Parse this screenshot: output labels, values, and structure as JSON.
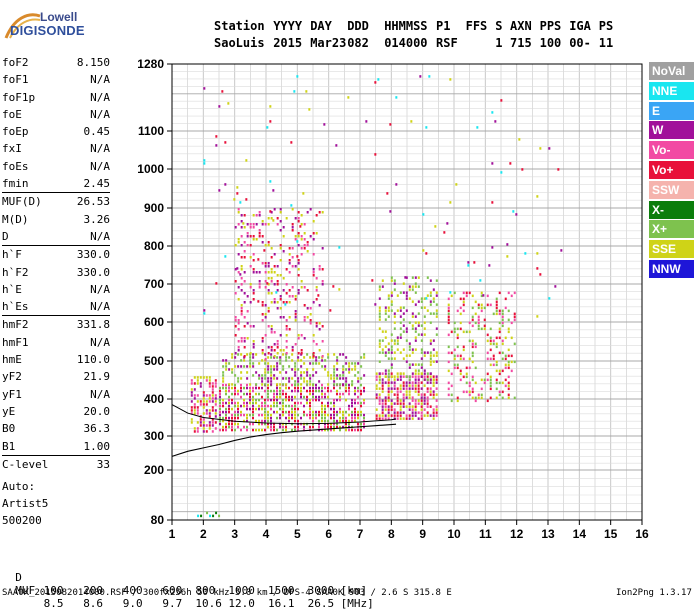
{
  "logo": {
    "line1": "Lowell",
    "line2": "DIGISONDE"
  },
  "header": {
    "labels": [
      "Station",
      "YYYY",
      "DAY",
      "DDD",
      "HHMMSS",
      "P1",
      "FFS",
      "S",
      "AXN",
      "PPS",
      "IGA",
      "PS"
    ],
    "values": [
      "SaoLuis",
      "2015",
      "Mar23",
      "082",
      "014000",
      "RSF",
      "1",
      "715",
      "100",
      "00-",
      "11"
    ]
  },
  "params": [
    {
      "k": "foF2",
      "v": "8.150"
    },
    {
      "k": "foF1",
      "v": "N/A"
    },
    {
      "k": "foF1p",
      "v": "N/A"
    },
    {
      "k": "foE",
      "v": "N/A"
    },
    {
      "k": "foEp",
      "v": "0.45"
    },
    {
      "k": "fxI",
      "v": "N/A"
    },
    {
      "k": "foEs",
      "v": "N/A"
    },
    {
      "k": "fmin",
      "v": "2.45"
    },
    {
      "k": "MUF(D)",
      "v": "26.53",
      "sep": true
    },
    {
      "k": "M(D)",
      "v": "3.26"
    },
    {
      "k": "D",
      "v": "N/A"
    },
    {
      "k": "h`F",
      "v": "330.0",
      "sep": true
    },
    {
      "k": "h`F2",
      "v": "330.0"
    },
    {
      "k": "h`E",
      "v": "N/A"
    },
    {
      "k": "h`Es",
      "v": "N/A"
    },
    {
      "k": "hmF2",
      "v": "331.8",
      "sep": true
    },
    {
      "k": "hmF1",
      "v": "N/A"
    },
    {
      "k": "hmE",
      "v": "110.0"
    },
    {
      "k": "yF2",
      "v": "21.9"
    },
    {
      "k": "yF1",
      "v": "N/A"
    },
    {
      "k": "yE",
      "v": "20.0"
    },
    {
      "k": "B0",
      "v": "36.3"
    },
    {
      "k": "B1",
      "v": "1.00"
    },
    {
      "k": "C-level",
      "v": "33",
      "sep": true
    }
  ],
  "autoscale": {
    "line1": "Auto:",
    "line2": "Artist5",
    "line3": "500200"
  },
  "legend": [
    {
      "label": "NoVal",
      "color": "#a0a0a0"
    },
    {
      "label": "NNE",
      "color": "#19e6f0"
    },
    {
      "label": "E",
      "color": "#3aa5f5"
    },
    {
      "label": "W",
      "color": "#a1109a"
    },
    {
      "label": "Vo-",
      "color": "#f24aa3"
    },
    {
      "label": "Vo+",
      "color": "#e8103a"
    },
    {
      "label": "SSW",
      "color": "#f5b3ad"
    },
    {
      "label": "X-",
      "color": "#0b7d0b"
    },
    {
      "label": "X+",
      "color": "#7ec24e"
    },
    {
      "label": "SSE",
      "color": "#cfd317"
    },
    {
      "label": "NNW",
      "color": "#1e16d8"
    }
  ],
  "footer": {
    "d_label": "D",
    "d_values": [
      "100",
      "200",
      "400",
      "600",
      "800",
      "1000",
      "1500",
      "3000",
      "[km]"
    ],
    "muf_label": "MUF",
    "muf_values": [
      "8.5",
      "8.6",
      "9.0",
      "9.7",
      "10.6",
      "12.0",
      "16.1",
      "26.5",
      "[MHz]"
    ],
    "caption": "SAA0K_2015082014000.RSF / 300fx256h 50 kHz 5.0 km / DPS-4 SAA0K 903 / 2.6 S 315.8 E",
    "version": "Ion2Png 1.3.17"
  },
  "chart_data": {
    "type": "scatter",
    "xlim": [
      1,
      16
    ],
    "ylim": [
      80,
      1280
    ],
    "grid": true,
    "x_ticks": [
      "1",
      "2",
      "3",
      "4",
      "5",
      "6",
      "7",
      "8",
      "9",
      "10",
      "11",
      "12",
      "13",
      "14",
      "15",
      "16"
    ],
    "y_ticks": [
      "80",
      "200",
      "300",
      "400",
      "500",
      "600",
      "700",
      "800",
      "900",
      "1000",
      "1100",
      "1280"
    ],
    "y_tick_values": [
      80,
      200,
      300,
      400,
      500,
      600,
      700,
      800,
      900,
      1000,
      1100,
      1280
    ],
    "profile_curve": {
      "name": "",
      "x": [
        1.0,
        1.5,
        2.0,
        2.5,
        3.0,
        3.5,
        4.0,
        4.5,
        5.0,
        5.5,
        6.0,
        6.5,
        7.0,
        7.5,
        8.0,
        8.15
      ],
      "y": [
        240,
        255,
        265,
        275,
        287,
        297,
        304,
        309,
        313,
        316,
        319,
        322,
        325,
        328,
        331,
        332
      ]
    },
    "lower_trace": {
      "x": [
        1.0,
        1.5,
        2.0,
        3.0,
        4.0,
        5.0,
        6.0,
        7.0,
        8.0,
        8.15
      ],
      "y": [
        385,
        362,
        350,
        340,
        335,
        333,
        334,
        338,
        344,
        346
      ]
    },
    "echo_clusters": [
      {
        "x": [
          1.6,
          2.5
        ],
        "y": [
          310,
          460
        ],
        "density": 0.55,
        "colors": [
          "#e8103a",
          "#a1109a",
          "#f24aa3",
          "#cfd317"
        ]
      },
      {
        "x": [
          2.5,
          7.2
        ],
        "y": [
          310,
          440
        ],
        "density": 0.65,
        "colors": [
          "#e8103a",
          "#a1109a",
          "#f24aa3",
          "#cfd317",
          "#7ec24e"
        ]
      },
      {
        "x": [
          2.6,
          7.2
        ],
        "y": [
          430,
          520
        ],
        "density": 0.45,
        "colors": [
          "#cfd317",
          "#7ec24e",
          "#a1109a"
        ]
      },
      {
        "x": [
          3.0,
          5.9
        ],
        "y": [
          500,
          900
        ],
        "density": 0.22,
        "colors": [
          "#a1109a",
          "#cfd317",
          "#e8103a",
          "#f24aa3"
        ]
      },
      {
        "x": [
          7.5,
          9.5
        ],
        "y": [
          340,
          470
        ],
        "density": 0.7,
        "colors": [
          "#e8103a",
          "#a1109a",
          "#f24aa3",
          "#cfd317"
        ]
      },
      {
        "x": [
          7.6,
          9.5
        ],
        "y": [
          450,
          720
        ],
        "density": 0.3,
        "colors": [
          "#cfd317",
          "#a1109a",
          "#7ec24e"
        ]
      },
      {
        "x": [
          9.8,
          12.0
        ],
        "y": [
          390,
          680
        ],
        "density": 0.28,
        "colors": [
          "#cfd317",
          "#e8103a",
          "#7ec24e",
          "#f24aa3"
        ]
      },
      {
        "x": [
          1.8,
          2.6
        ],
        "y": [
          85,
          100
        ],
        "density": 0.45,
        "colors": [
          "#7ec24e",
          "#0b7d0b",
          "#1e16d8",
          "#19e6f0"
        ]
      },
      {
        "x": [
          1.6,
          1.9
        ],
        "y": [
          210,
          220
        ],
        "density": 0.5,
        "colors": [
          "#7ec24e",
          "#0b7d0b"
        ]
      },
      {
        "x": [
          2.0,
          13.5
        ],
        "y": [
          600,
          1250
        ],
        "density": 0.012,
        "colors": [
          "#cfd317",
          "#a1109a",
          "#e8103a",
          "#19e6f0"
        ]
      }
    ]
  }
}
